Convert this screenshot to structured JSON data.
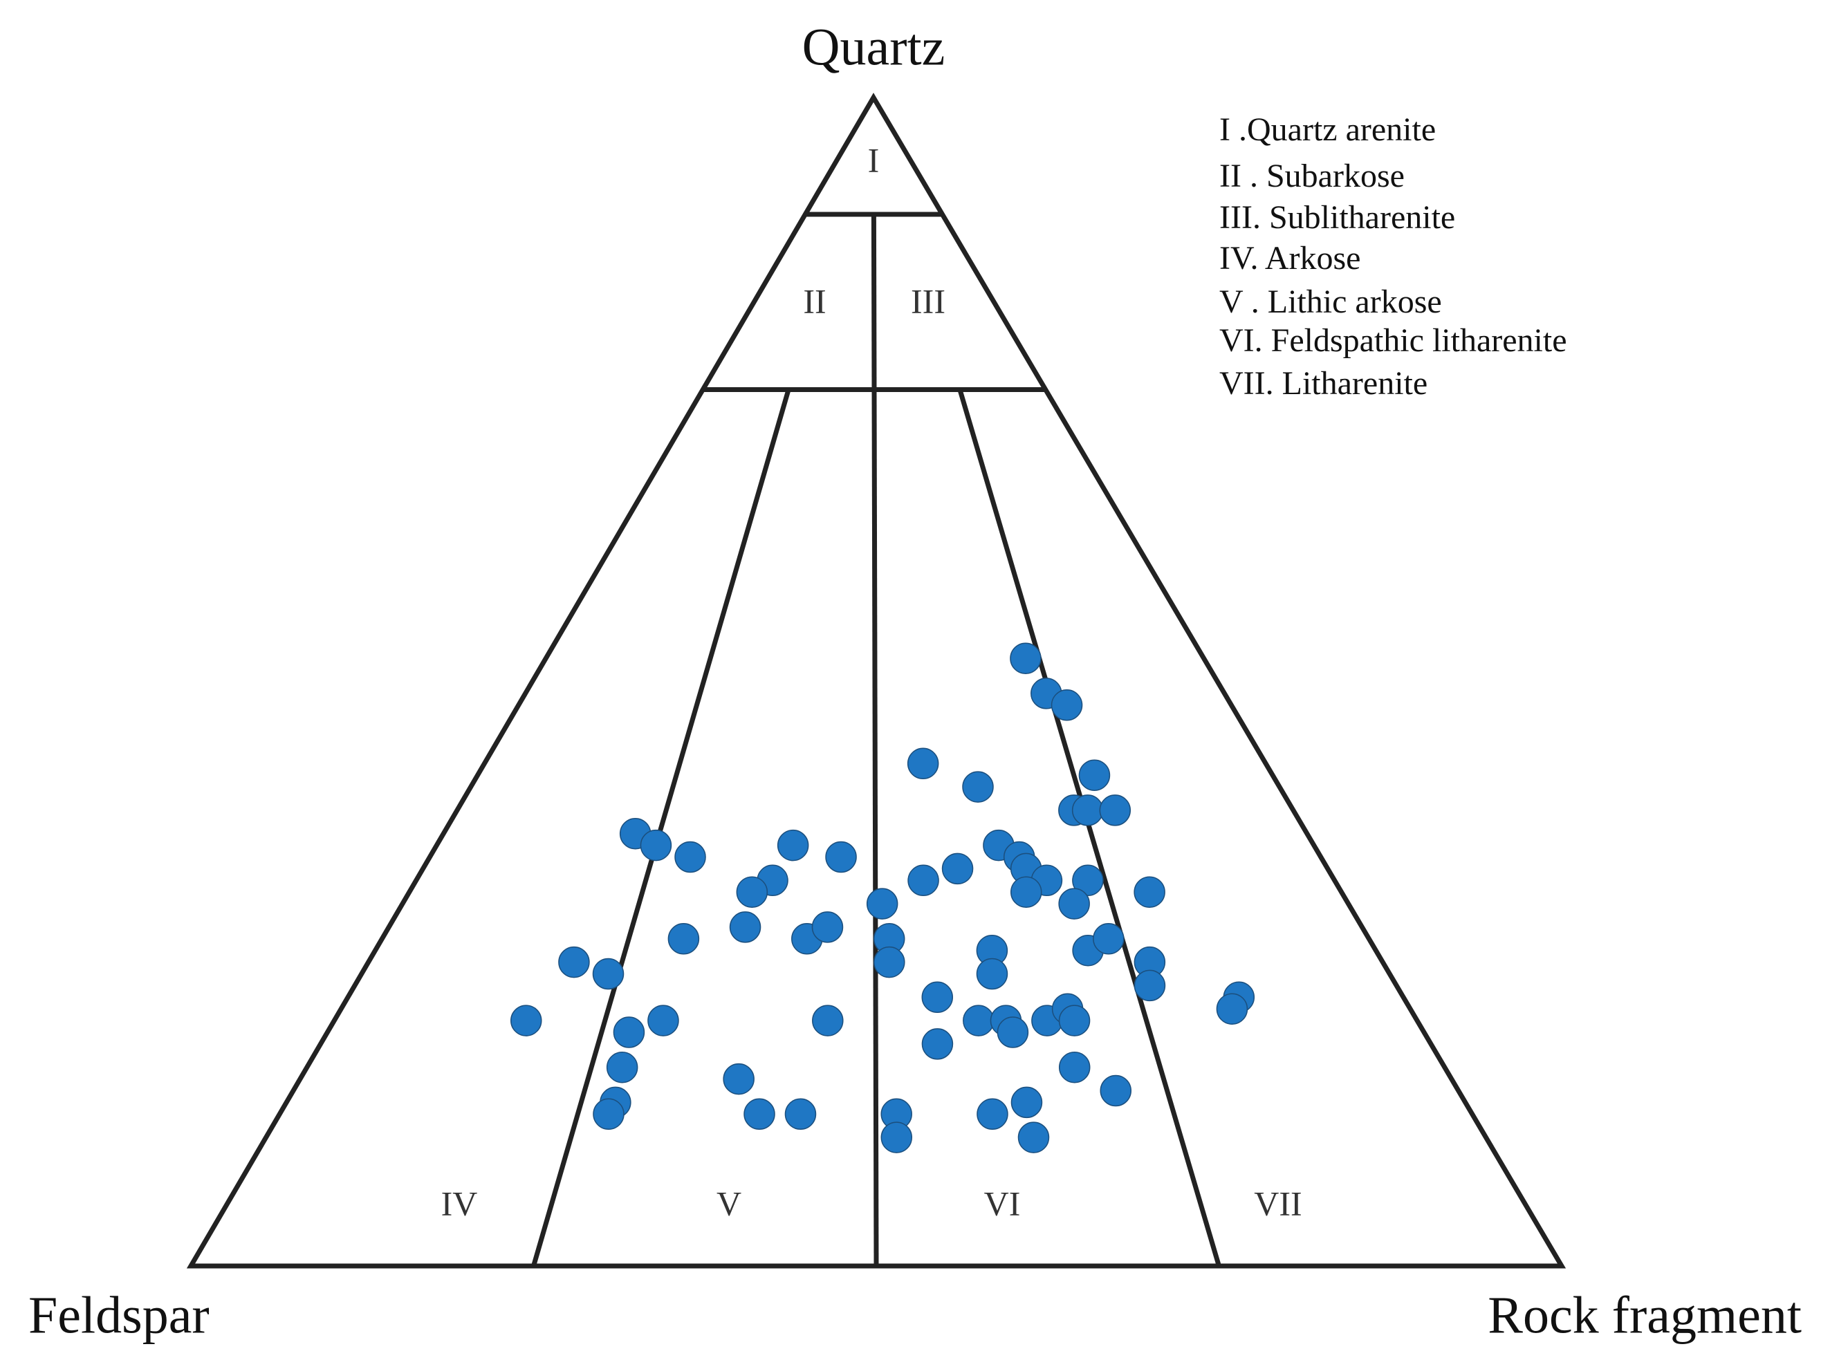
{
  "chart_data": {
    "type": "ternary",
    "components": [
      "Quartz",
      "Feldspar",
      "Rock fragment"
    ],
    "region_labels": [
      "I",
      "II",
      "III",
      "IV",
      "V",
      "VI",
      "VII"
    ],
    "legend": [
      "I .Quartz arenite",
      "II . Subarkose",
      "III. Sublitharenite",
      "IV. Arkose",
      "V . Lithic arkose",
      "VI. Feldspathic litharenite",
      "VII. Litharenite"
    ],
    "quartz_boundaries": [
      90,
      75
    ],
    "rock_fragment_splits": [
      25,
      50,
      75
    ],
    "color": "#1f77c4",
    "points": [
      [
        52,
        13,
        35
      ],
      [
        49,
        13,
        38
      ],
      [
        48,
        12,
        40
      ],
      [
        43,
        25,
        32
      ],
      [
        41,
        22,
        37
      ],
      [
        42,
        13,
        45
      ],
      [
        39,
        16,
        45
      ],
      [
        39,
        15,
        46
      ],
      [
        39,
        13,
        48
      ],
      [
        37,
        49,
        14
      ],
      [
        36,
        48,
        16
      ],
      [
        35,
        46,
        19
      ],
      [
        36,
        38,
        26
      ],
      [
        35,
        35,
        30
      ],
      [
        36,
        23,
        41
      ],
      [
        35,
        22,
        43
      ],
      [
        33,
        30,
        37
      ],
      [
        34,
        27,
        39
      ],
      [
        34,
        22,
        44
      ],
      [
        33,
        21,
        46
      ],
      [
        32,
        23,
        45
      ],
      [
        33,
        18,
        49
      ],
      [
        31,
        20,
        49
      ],
      [
        32,
        14,
        54
      ],
      [
        33,
        41,
        26
      ],
      [
        32,
        43,
        25
      ],
      [
        31,
        34,
        35
      ],
      [
        28,
        50,
        22
      ],
      [
        29,
        45,
        26
      ],
      [
        28,
        41,
        31
      ],
      [
        29,
        39,
        32
      ],
      [
        28,
        35,
        37
      ],
      [
        26,
        36,
        38
      ],
      [
        27,
        28,
        45
      ],
      [
        25,
        29,
        46
      ],
      [
        27,
        21,
        52
      ],
      [
        28,
        19,
        53
      ],
      [
        26,
        17,
        57
      ],
      [
        24,
        18,
        58
      ],
      [
        26,
        59,
        15
      ],
      [
        25,
        57,
        18
      ],
      [
        23,
        12,
        65
      ],
      [
        22,
        13,
        65
      ],
      [
        23,
        34,
        43
      ],
      [
        21,
        65,
        14
      ],
      [
        21,
        55,
        24
      ],
      [
        20,
        58,
        22
      ],
      [
        21,
        43,
        36
      ],
      [
        21,
        32,
        47
      ],
      [
        21,
        30,
        49
      ],
      [
        20,
        30,
        50
      ],
      [
        21,
        27,
        52
      ],
      [
        22,
        25,
        53
      ],
      [
        21,
        25,
        54
      ],
      [
        19,
        36,
        45
      ],
      [
        17,
        60,
        23
      ],
      [
        17,
        27,
        56
      ],
      [
        16,
        52,
        32
      ],
      [
        15,
        25,
        60
      ],
      [
        14,
        62,
        24
      ],
      [
        13,
        63,
        24
      ],
      [
        13,
        52,
        35
      ],
      [
        13,
        49,
        38
      ],
      [
        13,
        42,
        45
      ],
      [
        11,
        43,
        46
      ],
      [
        13,
        35,
        52
      ],
      [
        14,
        32,
        54
      ],
      [
        11,
        33,
        56
      ]
    ]
  }
}
